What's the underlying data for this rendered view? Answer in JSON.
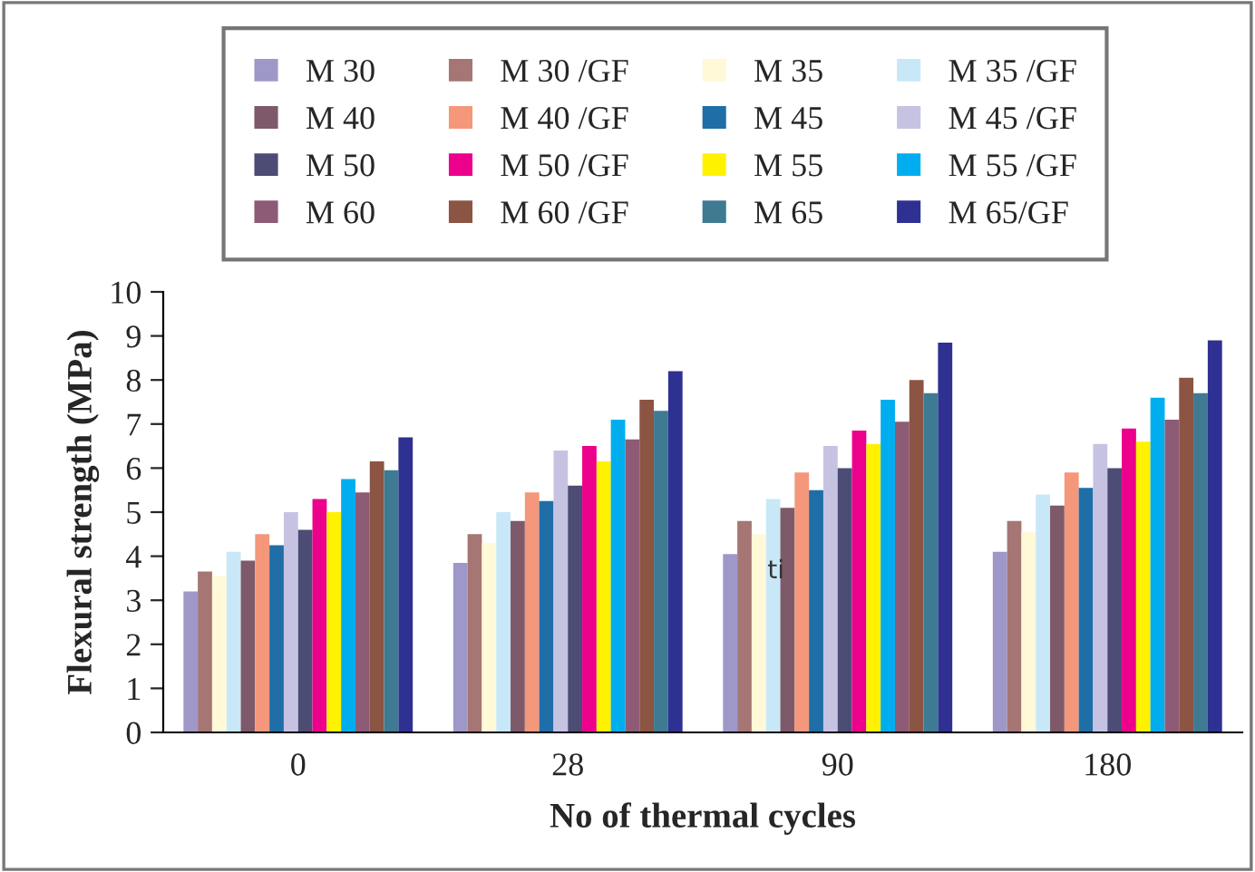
{
  "chart_data": {
    "type": "bar",
    "xlabel": "No of thermal cycles",
    "ylabel": "Flexural strength (MPa)",
    "categories": [
      "0",
      "28",
      "90",
      "180"
    ],
    "series": [
      {
        "name": "M 30",
        "color": "#9e98c9",
        "values": [
          3.2,
          3.85,
          4.05,
          4.1
        ]
      },
      {
        "name": "M 30 /GF",
        "color": "#a57674",
        "values": [
          3.65,
          4.5,
          4.8,
          4.8
        ]
      },
      {
        "name": "M 35",
        "color": "#fff9d8",
        "values": [
          3.55,
          4.3,
          4.5,
          4.55
        ]
      },
      {
        "name": "M 35 /GF",
        "color": "#c8e8f8",
        "values": [
          4.1,
          5.0,
          5.3,
          5.4
        ]
      },
      {
        "name": "M 40",
        "color": "#7e596a",
        "values": [
          3.9,
          4.8,
          5.1,
          5.15
        ]
      },
      {
        "name": "M 40 /GF",
        "color": "#f4977a",
        "values": [
          4.5,
          5.45,
          5.9,
          5.9
        ]
      },
      {
        "name": "M 45",
        "color": "#1f6ea8",
        "values": [
          4.25,
          5.25,
          5.5,
          5.55
        ]
      },
      {
        "name": "M 45 /GF",
        "color": "#c6c3e2",
        "values": [
          5.0,
          6.4,
          6.5,
          6.55
        ]
      },
      {
        "name": "M 50",
        "color": "#4c4c74",
        "values": [
          4.6,
          5.6,
          6.0,
          6.0
        ]
      },
      {
        "name": "M 50 /GF",
        "color": "#ec008c",
        "values": [
          5.3,
          6.5,
          6.85,
          6.9
        ]
      },
      {
        "name": "M 55",
        "color": "#fff200",
        "values": [
          5.0,
          6.15,
          6.55,
          6.6
        ]
      },
      {
        "name": "M 55 /GF",
        "color": "#00aeef",
        "values": [
          5.75,
          7.1,
          7.55,
          7.6
        ]
      },
      {
        "name": "M 60",
        "color": "#8e5b76",
        "values": [
          5.45,
          6.65,
          7.05,
          7.1
        ]
      },
      {
        "name": "M 60 /GF",
        "color": "#8c5443",
        "values": [
          6.15,
          7.55,
          8.0,
          8.05
        ]
      },
      {
        "name": "M 65",
        "color": "#3e7b92",
        "values": [
          5.95,
          7.3,
          7.7,
          7.7
        ]
      },
      {
        "name": "M 65/GF",
        "color": "#2e3192",
        "values": [
          6.7,
          8.2,
          8.85,
          8.9
        ]
      }
    ],
    "ylim": [
      0,
      10
    ],
    "yticks": [
      0,
      1,
      2,
      3,
      4,
      5,
      6,
      7,
      8,
      9,
      10
    ],
    "grid": false,
    "legend": "top",
    "annotations": [
      "ti"
    ]
  }
}
